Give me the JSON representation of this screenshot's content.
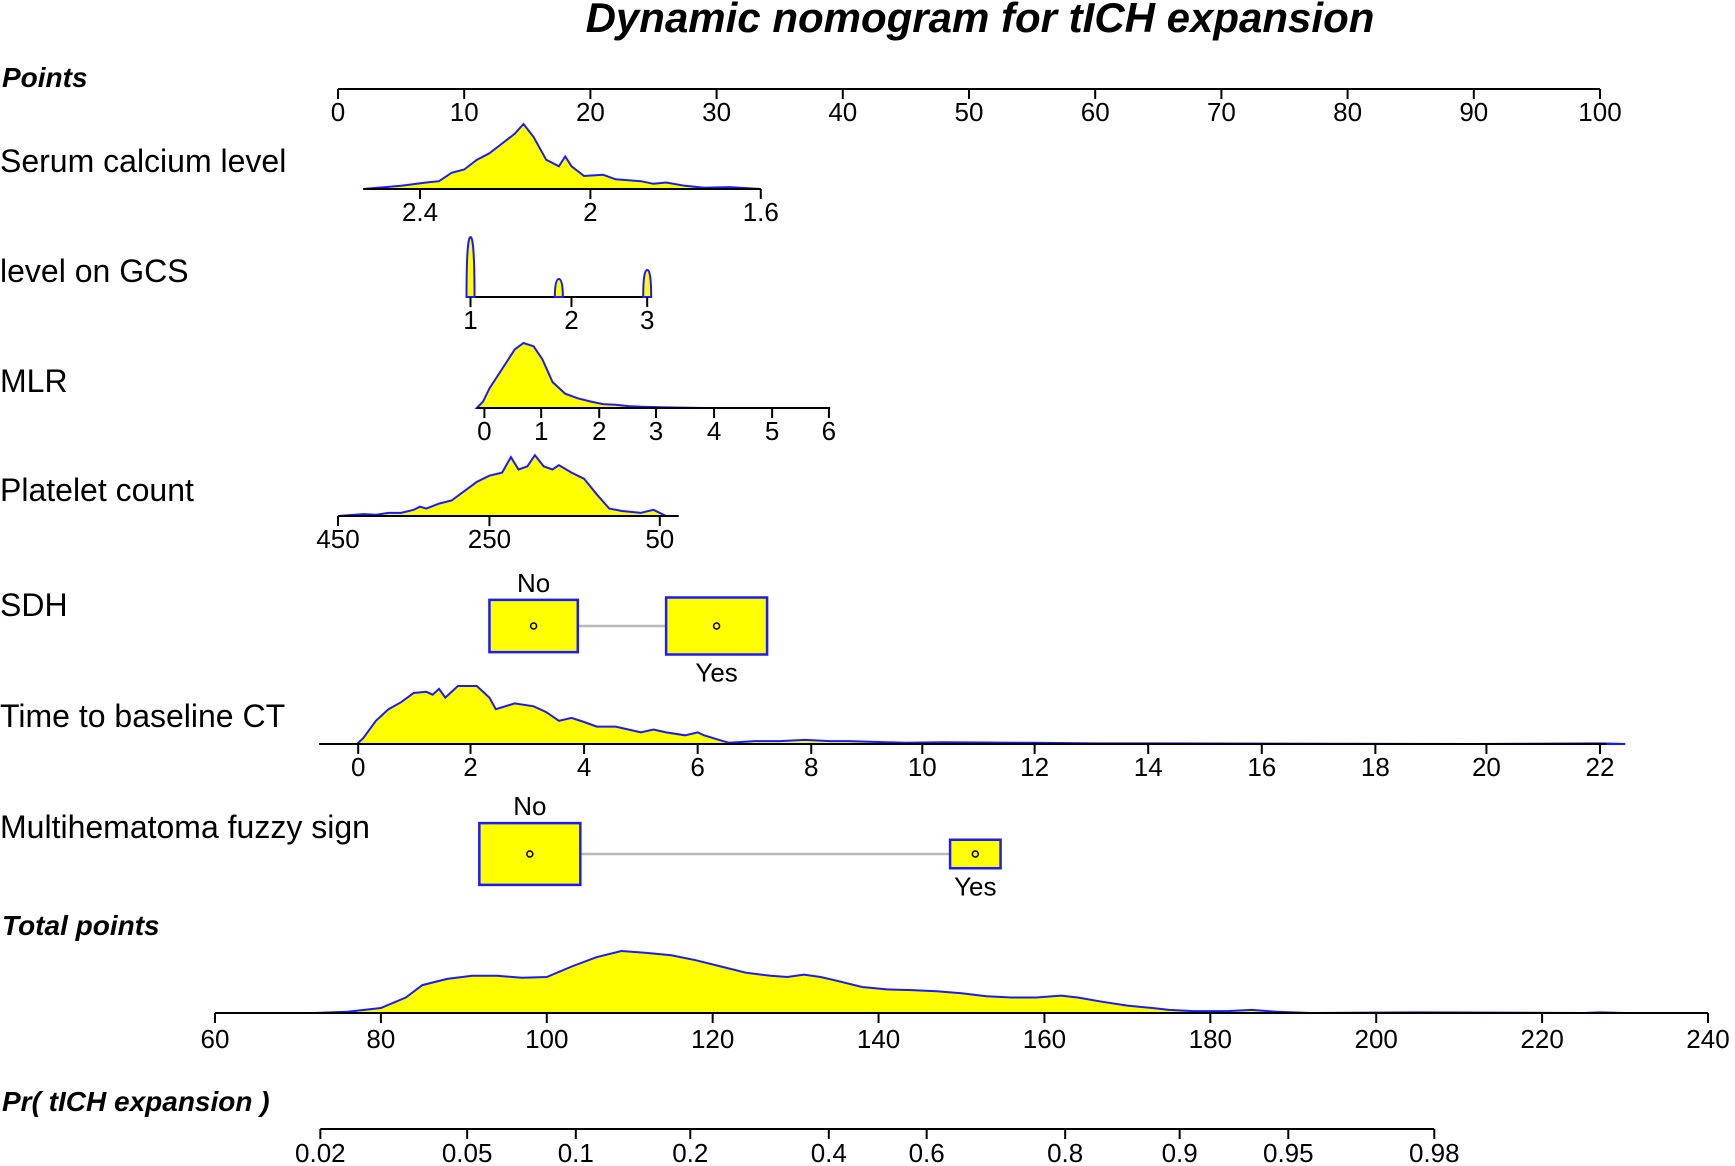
{
  "chart_data": {
    "type": "nomogram",
    "title": "Dynamic nomogram for tICH expansion",
    "points_axis": {
      "label": "Points",
      "range": [
        0,
        100
      ],
      "ticks": [
        "0",
        "10",
        "20",
        "30",
        "40",
        "50",
        "60",
        "70",
        "80",
        "90",
        "100"
      ]
    },
    "variables": [
      {
        "label": "Serum calcium level",
        "kind": "continuous",
        "point_range": [
          2,
          33.5
        ],
        "value_range": [
          2.5,
          1.6
        ],
        "ticks": [
          {
            "value": 2.4,
            "label": "2.4",
            "points": 6.5
          },
          {
            "value": 2.0,
            "label": "2",
            "points": 20
          },
          {
            "value": 1.6,
            "label": "1.6",
            "points": 33.5
          }
        ],
        "density": [
          [
            2,
            0.0
          ],
          [
            5,
            0.05
          ],
          [
            7,
            0.1
          ],
          [
            8,
            0.12
          ],
          [
            9,
            0.25
          ],
          [
            10,
            0.3
          ],
          [
            11,
            0.45
          ],
          [
            12,
            0.55
          ],
          [
            13,
            0.7
          ],
          [
            14,
            0.85
          ],
          [
            14.7,
            1.0
          ],
          [
            15.5,
            0.8
          ],
          [
            16.5,
            0.45
          ],
          [
            17.5,
            0.35
          ],
          [
            18,
            0.5
          ],
          [
            18.5,
            0.35
          ],
          [
            19.5,
            0.2
          ],
          [
            21,
            0.22
          ],
          [
            22,
            0.15
          ],
          [
            24,
            0.12
          ],
          [
            25,
            0.08
          ],
          [
            26,
            0.1
          ],
          [
            27.5,
            0.05
          ],
          [
            29,
            0.02
          ],
          [
            31,
            0.03
          ],
          [
            33.5,
            0.0
          ]
        ]
      },
      {
        "label": "level on GCS",
        "kind": "discrete",
        "point_range": [
          10.5,
          24.5
        ],
        "ticks": [
          {
            "value": 1,
            "label": "1",
            "points": 10.5
          },
          {
            "value": 2,
            "label": "2",
            "points": 18.5
          },
          {
            "value": 3,
            "label": "3",
            "points": 24.5
          }
        ],
        "spikes": [
          {
            "points": 10.5,
            "height": 1.0
          },
          {
            "points": 17.5,
            "height": 0.3
          },
          {
            "points": 24.5,
            "height": 0.45
          }
        ]
      },
      {
        "label": "MLR",
        "kind": "continuous",
        "point_range": [
          11,
          39
        ],
        "value_range": [
          0,
          6
        ],
        "ticks": [
          {
            "value": 0,
            "label": "0",
            "points": 11.6
          },
          {
            "value": 1,
            "label": "1",
            "points": 16.1
          },
          {
            "value": 2,
            "label": "2",
            "points": 20.7
          },
          {
            "value": 3,
            "label": "3",
            "points": 25.2
          },
          {
            "value": 4,
            "label": "4",
            "points": 29.8
          },
          {
            "value": 5,
            "label": "5",
            "points": 34.4
          },
          {
            "value": 6,
            "label": "6",
            "points": 38.9
          }
        ],
        "density": [
          [
            11,
            0.0
          ],
          [
            11.5,
            0.1
          ],
          [
            12,
            0.3
          ],
          [
            13,
            0.6
          ],
          [
            14,
            0.9
          ],
          [
            14.7,
            1.0
          ],
          [
            15.5,
            0.95
          ],
          [
            16.2,
            0.75
          ],
          [
            17,
            0.4
          ],
          [
            18,
            0.22
          ],
          [
            19,
            0.15
          ],
          [
            20,
            0.1
          ],
          [
            21,
            0.06
          ],
          [
            22,
            0.05
          ],
          [
            23,
            0.03
          ],
          [
            24,
            0.02
          ],
          [
            26,
            0.01
          ],
          [
            29,
            0.0
          ]
        ]
      },
      {
        "label": "Platelet count",
        "kind": "continuous",
        "point_range": [
          0,
          27
        ],
        "value_range": [
          450,
          50
        ],
        "ticks": [
          {
            "value": 450,
            "label": "450",
            "points": 0
          },
          {
            "value": 250,
            "label": "250",
            "points": 12
          },
          {
            "value": 50,
            "label": "50",
            "points": 25.5
          }
        ],
        "density": [
          [
            0,
            0.0
          ],
          [
            2,
            0.03
          ],
          [
            3,
            0.02
          ],
          [
            4,
            0.05
          ],
          [
            5,
            0.05
          ],
          [
            6,
            0.1
          ],
          [
            6.5,
            0.15
          ],
          [
            7,
            0.12
          ],
          [
            8,
            0.2
          ],
          [
            9,
            0.25
          ],
          [
            10,
            0.4
          ],
          [
            11,
            0.55
          ],
          [
            12,
            0.65
          ],
          [
            13,
            0.7
          ],
          [
            13.7,
            0.95
          ],
          [
            14.3,
            0.75
          ],
          [
            15,
            0.8
          ],
          [
            15.6,
            0.98
          ],
          [
            16.3,
            0.8
          ],
          [
            17,
            0.75
          ],
          [
            17.5,
            0.82
          ],
          [
            18.5,
            0.7
          ],
          [
            19.5,
            0.6
          ],
          [
            20.5,
            0.35
          ],
          [
            21.5,
            0.12
          ],
          [
            22.5,
            0.08
          ],
          [
            24,
            0.05
          ],
          [
            25,
            0.1
          ],
          [
            26,
            0.0
          ]
        ]
      },
      {
        "label": "SDH",
        "kind": "categorical",
        "categories": [
          {
            "label": "No",
            "points": 15.5,
            "label_pos": "above",
            "box_width": 7,
            "box_height": 0.55
          },
          {
            "label": "Yes",
            "points": 30,
            "label_pos": "below",
            "box_width": 8,
            "box_height": 0.6
          }
        ]
      },
      {
        "label": "Time to baseline CT",
        "kind": "continuous",
        "point_range": [
          -1.5,
          100.5
        ],
        "value_range": [
          0,
          22
        ],
        "ticks": [
          {
            "value": 0,
            "label": "0",
            "points": 1.6
          },
          {
            "value": 2,
            "label": "2",
            "points": 10.5
          },
          {
            "value": 4,
            "label": "4",
            "points": 19.5
          },
          {
            "value": 6,
            "label": "6",
            "points": 28.5
          },
          {
            "value": 8,
            "label": "8",
            "points": 37.5
          },
          {
            "value": 10,
            "label": "10",
            "points": 46.3
          },
          {
            "value": 12,
            "label": "12",
            "points": 55.2
          },
          {
            "value": 14,
            "label": "14",
            "points": 64.2
          },
          {
            "value": 16,
            "label": "16",
            "points": 73.2
          },
          {
            "value": 18,
            "label": "18",
            "points": 82.2
          },
          {
            "value": 20,
            "label": "20",
            "points": 91
          },
          {
            "value": 22,
            "label": "22",
            "points": 100
          }
        ],
        "density": [
          [
            1.5,
            0.0
          ],
          [
            2,
            0.1
          ],
          [
            3,
            0.4
          ],
          [
            4,
            0.6
          ],
          [
            5,
            0.72
          ],
          [
            6,
            0.88
          ],
          [
            7,
            0.9
          ],
          [
            7.5,
            0.85
          ],
          [
            8,
            0.95
          ],
          [
            8.5,
            0.8
          ],
          [
            9.5,
            1.0
          ],
          [
            11,
            1.0
          ],
          [
            12,
            0.8
          ],
          [
            12.5,
            0.6
          ],
          [
            14,
            0.7
          ],
          [
            15.5,
            0.65
          ],
          [
            16.5,
            0.55
          ],
          [
            17.5,
            0.4
          ],
          [
            18.5,
            0.45
          ],
          [
            19.5,
            0.38
          ],
          [
            20.5,
            0.3
          ],
          [
            22,
            0.3
          ],
          [
            23,
            0.25
          ],
          [
            24,
            0.2
          ],
          [
            25,
            0.25
          ],
          [
            26,
            0.2
          ],
          [
            27.5,
            0.15
          ],
          [
            28.5,
            0.2
          ],
          [
            29,
            0.15
          ],
          [
            30.5,
            0.05
          ],
          [
            31,
            0.02
          ],
          [
            33,
            0.05
          ],
          [
            35,
            0.05
          ],
          [
            37,
            0.07
          ],
          [
            39,
            0.05
          ],
          [
            40.5,
            0.05
          ],
          [
            45,
            0.02
          ],
          [
            48,
            0.03
          ],
          [
            55,
            0.02
          ],
          [
            60,
            0.01
          ],
          [
            65,
            0.01
          ],
          [
            90,
            0.0
          ],
          [
            100,
            0.01
          ],
          [
            102,
            0.0
          ]
        ]
      },
      {
        "label": "Multihematoma fuzzy sign",
        "kind": "categorical",
        "categories": [
          {
            "label": "No",
            "points": 15.2,
            "label_pos": "above",
            "box_width": 8,
            "box_height": 0.65
          },
          {
            "label": "Yes",
            "points": 50.5,
            "label_pos": "below",
            "box_width": 4,
            "box_height": 0.3
          }
        ]
      }
    ],
    "total_points_axis": {
      "label": "Total points",
      "range": [
        60,
        240
      ],
      "ticks": [
        "60",
        "80",
        "100",
        "120",
        "140",
        "160",
        "180",
        "200",
        "220",
        "240"
      ],
      "density": [
        [
          72,
          0.0
        ],
        [
          76,
          0.02
        ],
        [
          80,
          0.08
        ],
        [
          83,
          0.25
        ],
        [
          85,
          0.45
        ],
        [
          88,
          0.55
        ],
        [
          91,
          0.6
        ],
        [
          94,
          0.6
        ],
        [
          97,
          0.57
        ],
        [
          100,
          0.58
        ],
        [
          103,
          0.75
        ],
        [
          106,
          0.9
        ],
        [
          109,
          1.0
        ],
        [
          112,
          0.97
        ],
        [
          115,
          0.93
        ],
        [
          118,
          0.85
        ],
        [
          121,
          0.75
        ],
        [
          124,
          0.65
        ],
        [
          127,
          0.6
        ],
        [
          129,
          0.58
        ],
        [
          131,
          0.62
        ],
        [
          133,
          0.58
        ],
        [
          135,
          0.52
        ],
        [
          138,
          0.42
        ],
        [
          141,
          0.38
        ],
        [
          144,
          0.37
        ],
        [
          147,
          0.35
        ],
        [
          150,
          0.32
        ],
        [
          153,
          0.27
        ],
        [
          156,
          0.25
        ],
        [
          159,
          0.25
        ],
        [
          162,
          0.28
        ],
        [
          164,
          0.25
        ],
        [
          167,
          0.18
        ],
        [
          170,
          0.12
        ],
        [
          173,
          0.08
        ],
        [
          175,
          0.05
        ],
        [
          178,
          0.03
        ],
        [
          182,
          0.03
        ],
        [
          185,
          0.05
        ],
        [
          188,
          0.02
        ],
        [
          192,
          0.0
        ],
        [
          205,
          0.01
        ],
        [
          225,
          0.0
        ],
        [
          227,
          0.01
        ],
        [
          230,
          0.0
        ]
      ]
    },
    "probability_axis": {
      "label": "Pr( tICH expansion )",
      "ticks": [
        {
          "label": "0.02",
          "total_points": 72.7
        },
        {
          "label": "0.05",
          "total_points": 90.4
        },
        {
          "label": "0.1",
          "total_points": 103.5
        },
        {
          "label": "0.2",
          "total_points": 117.3
        },
        {
          "label": "0.4",
          "total_points": 134.0
        },
        {
          "label": "0.6",
          "total_points": 145.8
        },
        {
          "label": "0.8",
          "total_points": 162.5
        },
        {
          "label": "0.9",
          "total_points": 176.3
        },
        {
          "label": "0.95",
          "total_points": 189.4
        },
        {
          "label": "0.98",
          "total_points": 207.0
        }
      ]
    }
  }
}
